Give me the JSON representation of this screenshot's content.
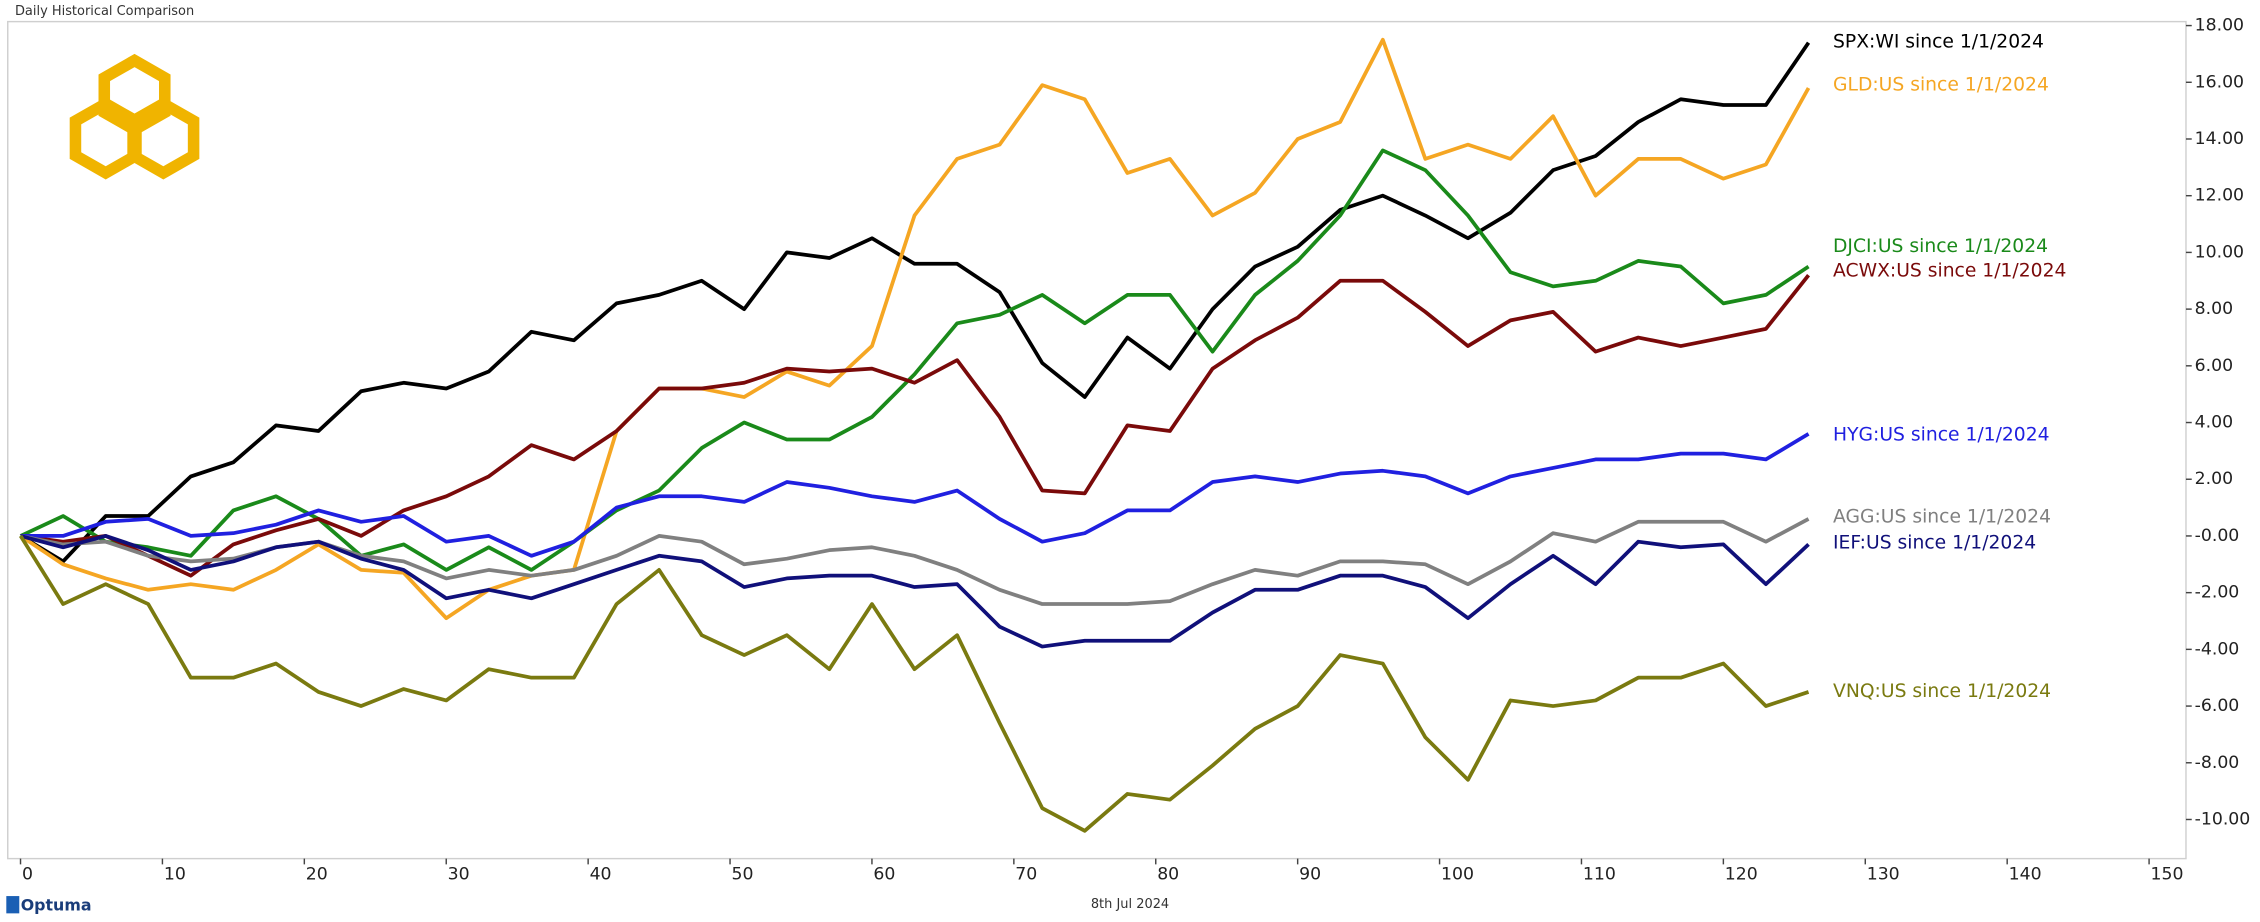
{
  "chart_data": {
    "type": "line",
    "title": "Daily Historical Comparison",
    "footer_date": "8th Jul 2024",
    "brand": "Optuma",
    "x": [
      0,
      3,
      6,
      9,
      12,
      15,
      18,
      21,
      24,
      27,
      30,
      33,
      36,
      39,
      42,
      45,
      48,
      51,
      54,
      57,
      60,
      63,
      66,
      69,
      72,
      75,
      78,
      81,
      84,
      87,
      90,
      93,
      96,
      99,
      102,
      105,
      108,
      111,
      114,
      117,
      120,
      123,
      126
    ],
    "series": [
      {
        "name": "SPX:WI since 1/1/2024",
        "color": "#000000",
        "values": [
          0,
          -0.9,
          0.7,
          0.7,
          2.1,
          2.6,
          3.9,
          3.7,
          5.1,
          5.4,
          5.2,
          5.8,
          7.2,
          6.9,
          8.2,
          8.5,
          9.0,
          8.0,
          10.0,
          9.8,
          10.5,
          9.6,
          9.6,
          8.6,
          6.1,
          4.9,
          7.0,
          5.9,
          8.0,
          9.5,
          10.2,
          11.5,
          12.0,
          11.3,
          10.5,
          11.4,
          12.9,
          13.4,
          14.6,
          15.4,
          15.2,
          15.2,
          17.4
        ]
      },
      {
        "name": "GLD:US since 1/1/2024",
        "color": "#f5a623",
        "values": [
          0,
          -1.0,
          -1.5,
          -1.9,
          -1.7,
          -1.9,
          -1.2,
          -0.3,
          -1.2,
          -1.3,
          -2.9,
          -1.9,
          -1.4,
          -1.2,
          3.7,
          5.2,
          5.2,
          4.9,
          5.8,
          5.3,
          6.7,
          11.3,
          13.3,
          13.8,
          15.9,
          15.4,
          12.8,
          13.3,
          11.3,
          12.1,
          14.0,
          14.6,
          17.5,
          13.3,
          13.8,
          13.3,
          14.8,
          12.0,
          13.3,
          13.3,
          12.6,
          13.1,
          15.8
        ]
      },
      {
        "name": "DJCI:US since 1/1/2024",
        "color": "#1a8a1a",
        "values": [
          0,
          0.7,
          -0.2,
          -0.4,
          -0.7,
          0.9,
          1.4,
          0.6,
          -0.7,
          -0.3,
          -1.2,
          -0.4,
          -1.2,
          -0.2,
          0.9,
          1.6,
          3.1,
          4.0,
          3.4,
          3.4,
          4.2,
          5.7,
          7.5,
          7.8,
          8.5,
          7.5,
          8.5,
          8.5,
          6.5,
          8.5,
          9.7,
          11.3,
          13.6,
          12.9,
          11.3,
          9.3,
          8.8,
          9.0,
          9.7,
          9.5,
          8.2,
          8.5,
          9.5
        ]
      },
      {
        "name": "ACWX:US since 1/1/2024",
        "color": "#7a0a0a",
        "values": [
          0,
          -0.2,
          0,
          -0.7,
          -1.4,
          -0.3,
          0.2,
          0.6,
          0,
          0.9,
          1.4,
          2.1,
          3.2,
          2.7,
          3.7,
          5.2,
          5.2,
          5.4,
          5.9,
          5.8,
          5.9,
          5.4,
          6.2,
          4.2,
          1.6,
          1.5,
          3.9,
          3.7,
          5.9,
          6.9,
          7.7,
          9.0,
          9.0,
          7.9,
          6.7,
          7.6,
          7.9,
          6.5,
          7.0,
          6.7,
          7.0,
          7.3,
          9.2
        ]
      },
      {
        "name": "HYG:US since 1/1/2024",
        "color": "#2020e0",
        "values": [
          0,
          0,
          0.5,
          0.6,
          0,
          0.1,
          0.4,
          0.9,
          0.5,
          0.7,
          -0.2,
          0,
          -0.7,
          -0.2,
          1.0,
          1.4,
          1.4,
          1.2,
          1.9,
          1.7,
          1.4,
          1.2,
          1.6,
          0.6,
          -0.2,
          0.1,
          0.9,
          0.9,
          1.9,
          2.1,
          1.9,
          2.2,
          2.3,
          2.1,
          1.5,
          2.1,
          2.4,
          2.7,
          2.7,
          2.9,
          2.9,
          2.7,
          3.6
        ]
      },
      {
        "name": "AGG:US since 1/1/2024",
        "color": "#808080",
        "values": [
          0,
          -0.3,
          -0.2,
          -0.7,
          -0.9,
          -0.8,
          -0.4,
          -0.2,
          -0.7,
          -0.9,
          -1.5,
          -1.2,
          -1.4,
          -1.2,
          -0.7,
          0,
          -0.2,
          -1.0,
          -0.8,
          -0.5,
          -0.4,
          -0.7,
          -1.2,
          -1.9,
          -2.4,
          -2.4,
          -2.4,
          -2.3,
          -1.7,
          -1.2,
          -1.4,
          -0.9,
          -0.9,
          -1.0,
          -1.7,
          -0.9,
          0.1,
          -0.2,
          0.5,
          0.5,
          0.5,
          -0.2,
          0.6
        ]
      },
      {
        "name": "IEF:US since 1/1/2024",
        "color": "#10107a",
        "values": [
          0,
          -0.4,
          0,
          -0.5,
          -1.2,
          -0.9,
          -0.4,
          -0.2,
          -0.8,
          -1.2,
          -2.2,
          -1.9,
          -2.2,
          -1.7,
          -1.2,
          -0.7,
          -0.9,
          -1.8,
          -1.5,
          -1.4,
          -1.4,
          -1.8,
          -1.7,
          -3.2,
          -3.9,
          -3.7,
          -3.7,
          -3.7,
          -2.7,
          -1.9,
          -1.9,
          -1.4,
          -1.4,
          -1.8,
          -2.9,
          -1.7,
          -0.7,
          -1.7,
          -0.2,
          -0.4,
          -0.3,
          -1.7,
          -0.3
        ]
      },
      {
        "name": "VNQ:US since 1/1/2024",
        "color": "#7a7a10",
        "values": [
          0,
          -2.4,
          -1.7,
          -2.4,
          -5.0,
          -5.0,
          -4.5,
          -5.5,
          -6.0,
          -5.4,
          -5.8,
          -4.7,
          -5.0,
          -5.0,
          -2.4,
          -1.2,
          -3.5,
          -4.2,
          -3.5,
          -4.7,
          -2.4,
          -4.7,
          -3.5,
          -6.6,
          -9.6,
          -10.4,
          -9.1,
          -9.3,
          -8.1,
          -6.8,
          -6.0,
          -4.2,
          -4.5,
          -7.1,
          -8.6,
          -5.8,
          -6.0,
          -5.8,
          -5.0,
          -5.0,
          -4.5,
          -6.0,
          -5.5
        ]
      }
    ],
    "xlim": [
      -0.9,
      152.6
    ],
    "ylim": [
      -11.38,
      18.14
    ],
    "xticks": [
      0,
      10,
      20,
      30,
      40,
      50,
      60,
      70,
      80,
      90,
      100,
      110,
      120,
      130,
      140,
      150
    ],
    "yticks": [
      {
        "value": -10,
        "label": "-10.00"
      },
      {
        "value": -8,
        "label": "-8.00"
      },
      {
        "value": -6,
        "label": "-6.00"
      },
      {
        "value": -4,
        "label": "-4.00"
      },
      {
        "value": -2,
        "label": "-2.00"
      },
      {
        "value": 0,
        "label": "-0.00"
      },
      {
        "value": 2,
        "label": "2.00"
      },
      {
        "value": 4,
        "label": "4.00"
      },
      {
        "value": 6,
        "label": "6.00"
      },
      {
        "value": 8,
        "label": "8.00"
      },
      {
        "value": 10,
        "label": "10.00"
      },
      {
        "value": 12,
        "label": "12.00"
      },
      {
        "value": 14,
        "label": "14.00"
      },
      {
        "value": 16,
        "label": "16.00"
      },
      {
        "value": 18,
        "label": "18.00"
      }
    ],
    "grid": false
  }
}
